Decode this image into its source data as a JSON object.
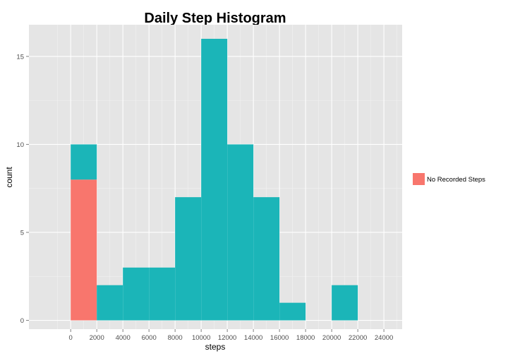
{
  "chart_data": {
    "type": "bar",
    "title": "Daily Step Histogram",
    "xlabel": "steps",
    "ylabel": "count",
    "xlim": [
      -3200,
      25400
    ],
    "ylim": [
      -0.5,
      16.8
    ],
    "x_ticks": [
      0,
      2000,
      4000,
      6000,
      8000,
      10000,
      12000,
      14000,
      16000,
      18000,
      20000,
      22000,
      24000
    ],
    "x_tick_labels": [
      "0",
      "2000",
      "4000",
      "6000",
      "8000",
      "10000",
      "12000",
      "14000",
      "16000",
      "18000",
      "20000",
      "22000",
      "24000"
    ],
    "y_ticks": [
      0,
      5,
      10,
      15
    ],
    "y_tick_labels": [
      "0",
      "5",
      "10",
      "15"
    ],
    "bin_width": 2000,
    "bin_starts": [
      0,
      2000,
      4000,
      6000,
      8000,
      10000,
      12000,
      14000,
      16000,
      18000,
      20000
    ],
    "stacked": true,
    "series": [
      {
        "name": "No Recorded Steps",
        "color": "#F8766D",
        "values": [
          8,
          0,
          0,
          0,
          0,
          0,
          0,
          0,
          0,
          0,
          0
        ],
        "in_legend": true
      },
      {
        "color": "#1BB5B8",
        "values": [
          2,
          2,
          3,
          3,
          7,
          16,
          10,
          7,
          1,
          0,
          2
        ],
        "in_legend": false
      }
    ],
    "legend": {
      "position": "right"
    },
    "grid": true,
    "colors": {
      "panel": "#E5E5E5",
      "grid_major": "#FFFFFF",
      "grid_minor": "#F2F2F2"
    }
  }
}
